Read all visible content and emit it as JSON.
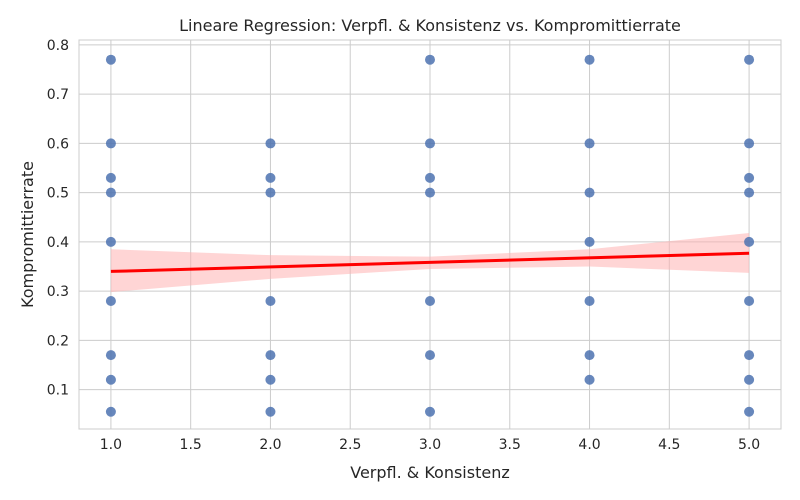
{
  "chart_data": {
    "type": "scatter",
    "title": "Lineare Regression: Verpfl. & Konsistenz vs. Kompromittierrate",
    "xlabel": "Verpfl. & Konsistenz",
    "ylabel": "Kompromittierrate",
    "xlim": [
      0.8,
      5.2
    ],
    "ylim": [
      0.02,
      0.81
    ],
    "xticks": [
      "1.0",
      "1.5",
      "2.0",
      "2.5",
      "3.0",
      "3.5",
      "4.0",
      "4.5",
      "5.0"
    ],
    "yticks": [
      "0.1",
      "0.2",
      "0.3",
      "0.4",
      "0.5",
      "0.6",
      "0.7",
      "0.8"
    ],
    "grid": true,
    "colors": {
      "points": "#4c72b0",
      "regression": "#ff0000",
      "ci_band": "#ffb3b3"
    },
    "series": [
      {
        "points": [
          [
            1,
            0.77
          ],
          [
            1,
            0.6
          ],
          [
            1,
            0.53
          ],
          [
            1,
            0.5
          ],
          [
            1,
            0.4
          ],
          [
            1,
            0.28
          ],
          [
            1,
            0.17
          ],
          [
            1,
            0.12
          ],
          [
            1,
            0.055
          ],
          [
            2,
            0.6
          ],
          [
            2,
            0.53
          ],
          [
            2,
            0.5
          ],
          [
            2,
            0.28
          ],
          [
            2,
            0.17
          ],
          [
            2,
            0.12
          ],
          [
            2,
            0.055
          ],
          [
            3,
            0.77
          ],
          [
            3,
            0.6
          ],
          [
            3,
            0.53
          ],
          [
            3,
            0.5
          ],
          [
            3,
            0.28
          ],
          [
            3,
            0.17
          ],
          [
            3,
            0.055
          ],
          [
            4,
            0.77
          ],
          [
            4,
            0.6
          ],
          [
            4,
            0.5
          ],
          [
            4,
            0.4
          ],
          [
            4,
            0.28
          ],
          [
            4,
            0.17
          ],
          [
            4,
            0.12
          ],
          [
            5,
            0.77
          ],
          [
            5,
            0.6
          ],
          [
            5,
            0.53
          ],
          [
            5,
            0.5
          ],
          [
            5,
            0.4
          ],
          [
            5,
            0.28
          ],
          [
            5,
            0.17
          ],
          [
            5,
            0.12
          ],
          [
            5,
            0.055
          ]
        ]
      }
    ],
    "regression": {
      "line": [
        [
          1,
          0.34
        ],
        [
          5,
          0.377
        ]
      ],
      "ci_upper": [
        [
          1,
          0.385
        ],
        [
          2,
          0.373
        ],
        [
          3,
          0.37
        ],
        [
          4,
          0.385
        ],
        [
          5,
          0.418
        ]
      ],
      "ci_lower": [
        [
          1,
          0.298
        ],
        [
          2,
          0.325
        ],
        [
          3,
          0.345
        ],
        [
          4,
          0.35
        ],
        [
          5,
          0.337
        ]
      ]
    }
  }
}
